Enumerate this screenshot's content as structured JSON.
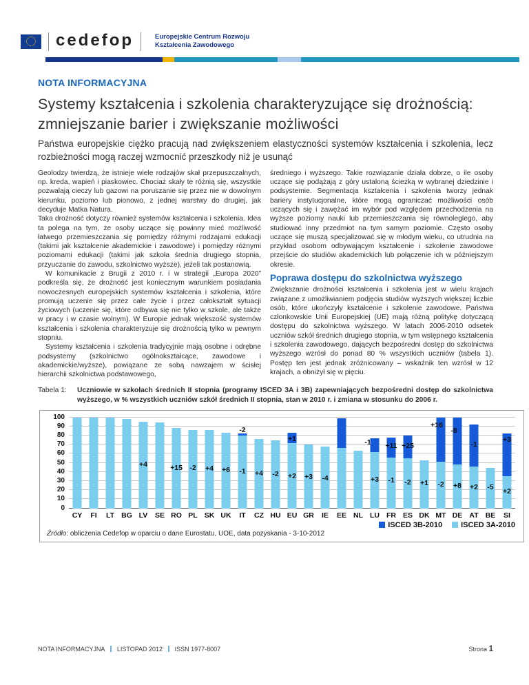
{
  "header": {
    "wordmark": "cedefop",
    "org_line1": "Europejskie Centrum Rozwoju",
    "org_line2": "Kształcenia Zawodowego"
  },
  "kicker": "NOTA INFORMACYJNA",
  "title": "Systemy kształcenia i szkolenia charakteryzujące się drożnością: zmniejszanie barier i zwiększanie możliwości",
  "subtitle": "Państwa europejskie ciężko pracują nad zwiększeniem elastyczności systemów kształcenia i szkolenia, lecz rozbieżności mogą raczej wzmocnić przeszkody niż je usunąć",
  "body": {
    "left": [
      "Geolodzy twierdzą, że istnieje wiele rodzajów skał przepuszczalnych, np. kreda, wapień i piaskowiec. Chociaż skały te różnią się, wszystkie pozwalają cieczy lub gazowi na poruszanie się przez nie w dowolnym kierunku, poziomo lub pionowo, z jednej warstwy do drugiej, jak decyduje Matka Natura.",
      "Taka drożność dotyczy również systemów kształcenia i szkolenia. Idea ta polega na tym, że osoby uczące się powinny mieć możliwość łatwego przemieszczania się pomiędzy różnymi rodzajami edukacji (takimi jak kształcenie akademickie i zawodowe) i pomiędzy różnymi poziomami edukacji (takimi jak szkoła średnia drugiego stopnia, przyuczanie do zawodu, szkolnictwo wyższe), jeżeli tak postanowią.",
      "W komunikacie z Brugii z 2010 r. i w strategii „Europa 2020” podkreśla się, że drożność jest koniecznym warunkiem posiadania nowoczesnych europejskich systemów kształcenia i szkolenia, które promują uczenie się przez całe życie i przez całokształt sytuacji życiowych (uczenie się, które odbywa się nie tylko w szkole, ale także w pracy i w czasie wolnym). W Europie jednak większość systemów kształcenia i szkolenia charakteryzuje się drożnością tylko w pewnym stopniu.",
      "Systemy kształcenia i szkolenia tradycyjnie mają osobne i odrębne podsystemy (szkolnictwo ogólnokształcące, zawodowe i akademickie/wyższe), powiązane ze sobą nawzajem w ścisłej hierarchii szkolnictwa podstawowego,"
    ],
    "section_heading": "Poprawa dostępu do szkolnictwa wyższego",
    "right": [
      "średniego i wyższego. Takie rozwiązanie działa dobrze, o ile osoby uczące się podążają z góry ustaloną ścieżką w wybranej dziedzinie i podsystemie. Segmentacja kształcenia i szkolenia tworzy jednak bariery instytucjonalne, które mogą ograniczać możliwości osób uczących się i zawężać im wybór pod względem przechodzenia na wyższe poziomy nauki lub przemieszczania się równoleglego, aby studiować inny przedmiot na tym samym poziomie. Często osoby uczące się muszą specjalizować się w młodym wieku, co utrudnia na przykład osobom odbywającym kształcenie i szkolenie zawodowe przejście do studiów akademickich lub połączenie ich w późniejszym okresie.",
      "Zwiększanie drożności kształcenia i szkolenia jest w wielu krajach związane z umożliwianiem podjęcia studiów wyższych większej liczbie osób, które ukończyły kształcenie i szkolenie zawodowe. Państwa członkowskie Unii Europejskiej (UE) mają różną politykę dotyczącą dostępu do szkolnictwa wyższego. W latach 2006-2010 odsetek uczniów szkół średnich drugiego stopnia, w tym wstępnego kształcenia i szkolenia zawodowego, dających bezpośredni dostęp do szkolnictwa wyższego wzrósł do ponad 80 % wszystkich uczniów (tabela 1). Postęp ten jest jednak zróżnicowany – wskaźnik ten wzrósł w 12 krajach, a obniżył się w pięciu."
    ]
  },
  "table_caption": {
    "label": "Tabela 1:",
    "text": "Uczniowie w szkołach średnich II stopnia (programy ISCED 3A i 3B) zapewniających bezpośredni dostęp do szkolnictwa wyższego, w % wszystkich uczniów szkół średnich II stopnia, stan w 2010 r. i zmiana w stosunku do 2006 r."
  },
  "chart_data": {
    "type": "bar",
    "stacked": true,
    "ylim": [
      0,
      100
    ],
    "ytick_step": 10,
    "grid": true,
    "legend_position": "bottom-right",
    "legend": [
      {
        "name": "ISCED 3B-2010",
        "color": "#155BD9"
      },
      {
        "name": "ISCED 3A-2010",
        "color": "#7CCEF0"
      }
    ],
    "categories": [
      "CY",
      "FI",
      "LT",
      "BG",
      "LV",
      "SE",
      "RO",
      "PL",
      "SK",
      "UK",
      "IT",
      "CZ",
      "HU",
      "EU",
      "GR",
      "IE",
      "EE",
      "NL",
      "LU",
      "FR",
      "ES",
      "DK",
      "MT",
      "DE",
      "AT",
      "BE",
      "SI"
    ],
    "bars": [
      {
        "code": "CY",
        "a": 100
      },
      {
        "code": "FI",
        "a": 100
      },
      {
        "code": "LT",
        "a": 100
      },
      {
        "code": "BG",
        "a": 98
      },
      {
        "code": "LV",
        "a": 95,
        "bottom": "+4",
        "bottomY": 48
      },
      {
        "code": "SE",
        "a": 94
      },
      {
        "code": "RO",
        "a": 88,
        "bottom": "+15",
        "bottomY": 44
      },
      {
        "code": "PL",
        "a": 86,
        "bottom": "-2",
        "bottomY": 44
      },
      {
        "code": "SK",
        "a": 86,
        "bottom": "+4",
        "bottomY": 43
      },
      {
        "code": "UK",
        "a": 83,
        "bottom": "+6",
        "bottomY": 42
      },
      {
        "code": "IT",
        "a": 80,
        "b": 82,
        "top": "-2",
        "topY": 86,
        "bottom": "-1",
        "bottomY": 40
      },
      {
        "code": "CZ",
        "a": 76,
        "bottom": "+4",
        "bottomY": 38
      },
      {
        "code": "HU",
        "a": 75,
        "bottom": "-2",
        "bottomY": 37
      },
      {
        "code": "EU",
        "a": 72,
        "b": 83,
        "top": "+1",
        "topY": 76,
        "bottom": "+2",
        "bottomY": 35
      },
      {
        "code": "GR",
        "a": 70,
        "bottom": "+3",
        "bottomY": 34
      },
      {
        "code": "IE",
        "a": 68,
        "bottom": "-4",
        "bottomY": 33
      },
      {
        "code": "EE",
        "a": 66,
        "b": 99
      },
      {
        "code": "NL",
        "a": 63
      },
      {
        "code": "LU",
        "a": 62,
        "b": 77,
        "top": "-1",
        "topY": 72,
        "topDx": -10,
        "bottom": "+3",
        "bottomY": 31
      },
      {
        "code": "FR",
        "a": 56,
        "b": 78,
        "top": "+11",
        "topY": 68,
        "bottom": "-1",
        "bottomY": 30
      },
      {
        "code": "ES",
        "a": 55,
        "b": 80,
        "top": "+25",
        "topY": 68,
        "bottom": "-2",
        "bottomY": 28
      },
      {
        "code": "DK",
        "a": 53,
        "bottom": "+1",
        "bottomY": 27
      },
      {
        "code": "MT",
        "a": 51,
        "b": 100,
        "top": "+16",
        "topY": 91,
        "topDx": -6,
        "bottom": "-2",
        "bottomY": 26
      },
      {
        "code": "DE",
        "a": 48,
        "b": 100,
        "top": "-8",
        "topY": 85,
        "topDx": -5,
        "bottom": "+8",
        "bottomY": 24
      },
      {
        "code": "AT",
        "a": 46,
        "b": 92,
        "top": "-1",
        "topY": 70,
        "bottom": "+2",
        "bottomY": 23
      },
      {
        "code": "BE",
        "a": 44,
        "bottom": "-5",
        "bottomY": 23
      },
      {
        "code": "SI",
        "a": 35,
        "b": 82,
        "top": "+3",
        "topY": 75,
        "bottom": "+2",
        "bottomY": 18
      }
    ],
    "source_prefix": "Źródło",
    "source_rest": ": obliczenia Cedefop w oparciu o dane Eurostatu, UOE, data pozyskania - 3-10-2012"
  },
  "footer": {
    "left_items": [
      "NOTA INFORMACYJNA",
      "LISTOPAD 2012",
      "ISSN 1977-8007"
    ],
    "page_label": "Strona",
    "page_number": "1"
  },
  "colors": {
    "accent_blue": "#1767BE",
    "bar_light": "#7CCEF0",
    "bar_dark": "#155BD9",
    "stripe_navy": "#16348C",
    "stripe_gold": "#F0B400",
    "stripe_teal": "#2097BE",
    "stripe_lightblue": "#A9CAEB"
  }
}
